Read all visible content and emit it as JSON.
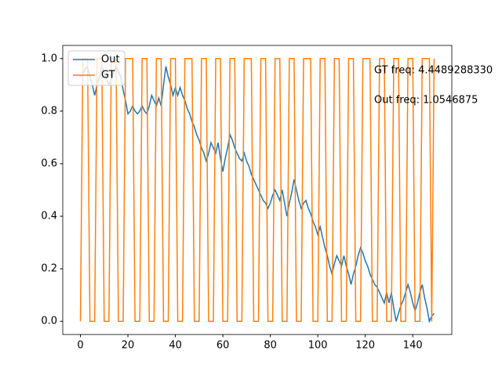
{
  "chart_data": {
    "type": "line",
    "x": [
      0,
      1,
      2,
      3,
      4,
      5,
      6,
      7,
      8,
      9,
      10,
      11,
      12,
      13,
      14,
      15,
      16,
      17,
      18,
      19,
      20,
      21,
      22,
      23,
      24,
      25,
      26,
      27,
      28,
      29,
      30,
      31,
      32,
      33,
      34,
      35,
      36,
      37,
      38,
      39,
      40,
      41,
      42,
      43,
      44,
      45,
      46,
      47,
      48,
      49,
      50,
      51,
      52,
      53,
      54,
      55,
      56,
      57,
      58,
      59,
      60,
      61,
      62,
      63,
      64,
      65,
      66,
      67,
      68,
      69,
      70,
      71,
      72,
      73,
      74,
      75,
      76,
      77,
      78,
      79,
      80,
      81,
      82,
      83,
      84,
      85,
      86,
      87,
      88,
      89,
      90,
      91,
      92,
      93,
      94,
      95,
      96,
      97,
      98,
      99,
      100,
      101,
      102,
      103,
      104,
      105,
      106,
      107,
      108,
      109,
      110,
      111,
      112,
      113,
      114,
      115,
      116,
      117,
      118,
      119,
      120,
      121,
      122,
      123,
      124,
      125,
      126,
      127,
      128,
      129,
      130,
      131,
      132,
      133,
      134,
      135,
      136,
      137,
      138,
      139,
      140,
      141,
      142,
      143,
      144,
      145,
      146,
      147,
      148,
      149
    ],
    "series": [
      {
        "name": "Out",
        "color": "#1f77b4",
        "values": [
          0.93,
          0.94,
          0.96,
          0.97,
          0.93,
          0.9,
          0.86,
          0.9,
          0.93,
          0.97,
          0.95,
          0.92,
          0.9,
          0.92,
          0.95,
          0.97,
          0.95,
          0.93,
          0.88,
          0.84,
          0.79,
          0.8,
          0.82,
          0.8,
          0.79,
          0.8,
          0.82,
          0.8,
          0.79,
          0.82,
          0.86,
          0.84,
          0.82,
          0.85,
          0.82,
          0.9,
          0.97,
          0.93,
          0.9,
          0.86,
          0.89,
          0.86,
          0.89,
          0.86,
          0.84,
          0.81,
          0.79,
          0.76,
          0.74,
          0.71,
          0.69,
          0.66,
          0.64,
          0.61,
          0.64,
          0.68,
          0.66,
          0.64,
          0.68,
          0.62,
          0.57,
          0.62,
          0.66,
          0.71,
          0.69,
          0.66,
          0.64,
          0.62,
          0.61,
          0.64,
          0.61,
          0.59,
          0.56,
          0.54,
          0.52,
          0.5,
          0.48,
          0.46,
          0.45,
          0.43,
          0.45,
          0.48,
          0.5,
          0.48,
          0.46,
          0.5,
          0.45,
          0.4,
          0.45,
          0.49,
          0.54,
          0.5,
          0.46,
          0.43,
          0.45,
          0.46,
          0.43,
          0.41,
          0.38,
          0.36,
          0.33,
          0.36,
          0.32,
          0.28,
          0.25,
          0.21,
          0.18,
          0.22,
          0.25,
          0.23,
          0.21,
          0.25,
          0.21,
          0.18,
          0.14,
          0.18,
          0.21,
          0.25,
          0.28,
          0.26,
          0.23,
          0.21,
          0.18,
          0.16,
          0.14,
          0.13,
          0.11,
          0.09,
          0.07,
          0.11,
          0.07,
          0.11,
          0.05,
          0.0,
          0.03,
          0.06,
          0.08,
          0.11,
          0.14,
          0.11,
          0.07,
          0.04,
          0.07,
          0.11,
          0.14,
          0.09,
          0.05,
          0.0,
          0.02,
          0.03
        ]
      },
      {
        "name": "GT",
        "color": "#ff7f0e",
        "values": [
          0,
          1,
          1,
          1,
          0,
          0,
          0,
          1,
          1,
          1,
          0,
          0,
          0,
          1,
          1,
          1,
          0,
          0,
          0,
          1,
          1,
          1,
          1,
          0,
          0,
          0,
          1,
          1,
          1,
          0,
          0,
          0,
          1,
          1,
          1,
          0,
          0,
          0,
          1,
          1,
          1,
          0,
          0,
          0,
          1,
          1,
          1,
          1,
          0,
          0,
          0,
          1,
          1,
          1,
          0,
          0,
          0,
          1,
          1,
          1,
          0,
          0,
          0,
          1,
          1,
          1,
          0,
          0,
          0,
          1,
          1,
          1,
          1,
          0,
          0,
          0,
          1,
          1,
          1,
          0,
          0,
          0,
          1,
          1,
          1,
          0,
          0,
          0,
          1,
          1,
          1,
          0,
          0,
          0,
          1,
          1,
          1,
          1,
          0,
          0,
          0,
          1,
          1,
          1,
          0,
          0,
          0,
          1,
          1,
          1,
          0,
          0,
          0,
          1,
          1,
          1,
          0,
          0,
          0,
          1,
          1,
          1,
          1,
          0,
          0,
          0,
          1,
          1,
          1,
          0,
          0,
          0,
          1,
          1,
          1,
          0,
          0,
          0,
          1,
          1,
          1,
          0,
          0,
          0,
          1,
          1,
          1,
          1,
          0,
          1
        ]
      }
    ],
    "xlim": [
      -7.45,
      156.45
    ],
    "ylim": [
      -0.05,
      1.05
    ],
    "xticks": [
      0,
      20,
      40,
      60,
      80,
      100,
      120,
      140
    ],
    "yticks": [
      {
        "value": 0,
        "label": "0.0"
      },
      {
        "value": 0.2,
        "label": "0.2"
      },
      {
        "value": 0.4,
        "label": "0.4"
      },
      {
        "value": 0.6,
        "label": "0.6"
      },
      {
        "value": 0.8,
        "label": "0.8"
      },
      {
        "value": 1,
        "label": "1.0"
      }
    ],
    "annotations": [
      "GT freq: 4.4489288330",
      "Out freq: 1.0546875"
    ],
    "legend": "upper left"
  }
}
